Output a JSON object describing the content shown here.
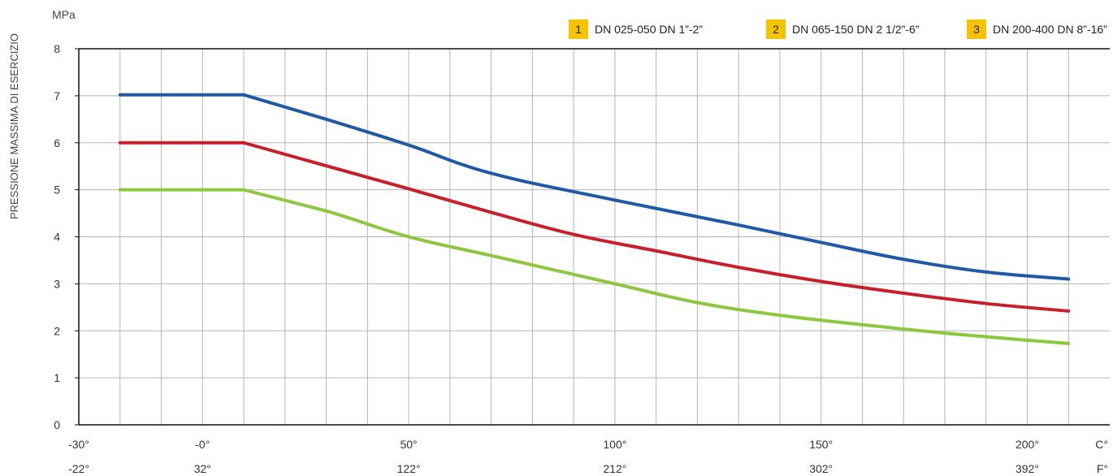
{
  "chart_data": {
    "type": "line",
    "unit_label": "MPa",
    "ylabel": "PRESSIONE MASSIMA DI ESERCIZIO",
    "ylim": [
      0,
      8
    ],
    "yticks": [
      "0",
      "1",
      "2",
      "3",
      "4",
      "5",
      "6",
      "7",
      "8"
    ],
    "xlim": [
      -30,
      220
    ],
    "x_ticks_c": [
      {
        "value": -30,
        "label": "-30°"
      },
      {
        "value": 0,
        "label": "-0°"
      },
      {
        "value": 50,
        "label": "50°"
      },
      {
        "value": 100,
        "label": "100°"
      },
      {
        "value": 150,
        "label": "150°"
      },
      {
        "value": 200,
        "label": "200°"
      }
    ],
    "x_ticks_f": [
      {
        "value": -30,
        "label": "-22°"
      },
      {
        "value": 0,
        "label": "32°"
      },
      {
        "value": 50,
        "label": "122°"
      },
      {
        "value": 100,
        "label": "212°"
      },
      {
        "value": 150,
        "label": "302°"
      },
      {
        "value": 200,
        "label": "392°"
      }
    ],
    "x_unit_c": "C°",
    "x_unit_f": "F°",
    "grid": true,
    "legend_position": "top-right",
    "series": [
      {
        "number": "1",
        "name": "DN 025-050  DN 1”-2”",
        "color": "#1f5aa6",
        "points": [
          [
            -20,
            7.02
          ],
          [
            10,
            7.02
          ],
          [
            30,
            6.5
          ],
          [
            50,
            5.95
          ],
          [
            70,
            5.35
          ],
          [
            100,
            4.78
          ],
          [
            130,
            4.25
          ],
          [
            150,
            3.88
          ],
          [
            170,
            3.52
          ],
          [
            190,
            3.25
          ],
          [
            210,
            3.1
          ]
        ]
      },
      {
        "number": "2",
        "name": "DN 065-150  DN 2 1/2”-6”",
        "color": "#c8202a",
        "points": [
          [
            -20,
            6.0
          ],
          [
            10,
            6.0
          ],
          [
            50,
            5.02
          ],
          [
            70,
            4.52
          ],
          [
            90,
            4.05
          ],
          [
            110,
            3.7
          ],
          [
            130,
            3.35
          ],
          [
            150,
            3.05
          ],
          [
            170,
            2.8
          ],
          [
            190,
            2.58
          ],
          [
            210,
            2.42
          ]
        ]
      },
      {
        "number": "3",
        "name": "DN 200-400  DN 8”-16”",
        "color": "#8dc63f",
        "points": [
          [
            -20,
            5.0
          ],
          [
            10,
            5.0
          ],
          [
            30,
            4.55
          ],
          [
            50,
            4.0
          ],
          [
            70,
            3.6
          ],
          [
            100,
            3.0
          ],
          [
            120,
            2.6
          ],
          [
            140,
            2.33
          ],
          [
            160,
            2.13
          ],
          [
            180,
            1.95
          ],
          [
            200,
            1.8
          ],
          [
            210,
            1.73
          ]
        ]
      }
    ]
  }
}
